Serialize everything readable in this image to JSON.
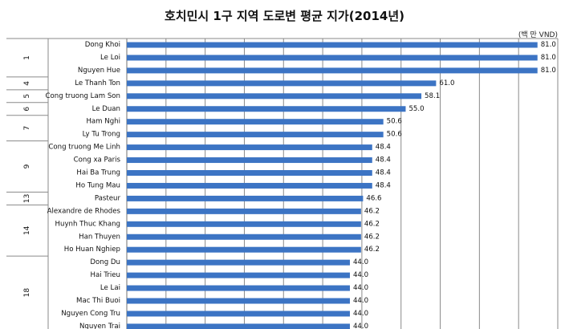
{
  "chart_data": {
    "type": "bar",
    "orientation": "horizontal",
    "title": "호치민시 1구 지역 도로변 평균 지가(2014년)",
    "unit": "(백 만 VND)",
    "xlim": [
      0,
      85
    ],
    "grid": true,
    "bar_color": "#3c74c4",
    "categories": [
      "Dong Khoi",
      "Le Loi",
      "Nguyen Hue",
      "Le Thanh Ton",
      "Cong truong Lam Son",
      "Le Duan",
      "Ham Nghi",
      "Ly Tu Trong",
      "Cong truong Me Linh",
      "Cong xa Paris",
      "Hai Ba Trung",
      "Ho Tung Mau",
      "Pasteur",
      "Alexandre de Rhodes",
      "Huynh Thuc Khang",
      "Han Thuyen",
      "Ho Huan Nghiep",
      "Dong Du",
      "Hai Trieu",
      "Le Lai",
      "Mac Thi Buoi",
      "Nguyen Cong Tru",
      "Nguyen Trai"
    ],
    "values": [
      81.0,
      81.0,
      81.0,
      61.0,
      58.1,
      55.0,
      50.6,
      50.6,
      48.4,
      48.4,
      48.4,
      48.4,
      46.6,
      46.2,
      46.2,
      46.2,
      46.2,
      44.0,
      44.0,
      44.0,
      44.0,
      44.0,
      44.0
    ],
    "value_labels": [
      "81.0",
      "81.0",
      "81.0",
      "61.0",
      "58.1",
      "55.0",
      "50.6",
      "50.6",
      "48.4",
      "48.4",
      "48.4",
      "48.4",
      "46.6",
      "46.2",
      "46.2",
      "46.2",
      "46.2",
      "44.0",
      "44.0",
      "44.0",
      "44.0",
      "44.0",
      "44.0"
    ],
    "groups": [
      {
        "label": "1",
        "count": 3
      },
      {
        "label": "4",
        "count": 1
      },
      {
        "label": "5",
        "count": 1
      },
      {
        "label": "6",
        "count": 1
      },
      {
        "label": "7",
        "count": 2
      },
      {
        "label": "9",
        "count": 4
      },
      {
        "label": "13",
        "count": 1
      },
      {
        "label": "14",
        "count": 4
      },
      {
        "label": "18",
        "count": 6
      }
    ]
  }
}
